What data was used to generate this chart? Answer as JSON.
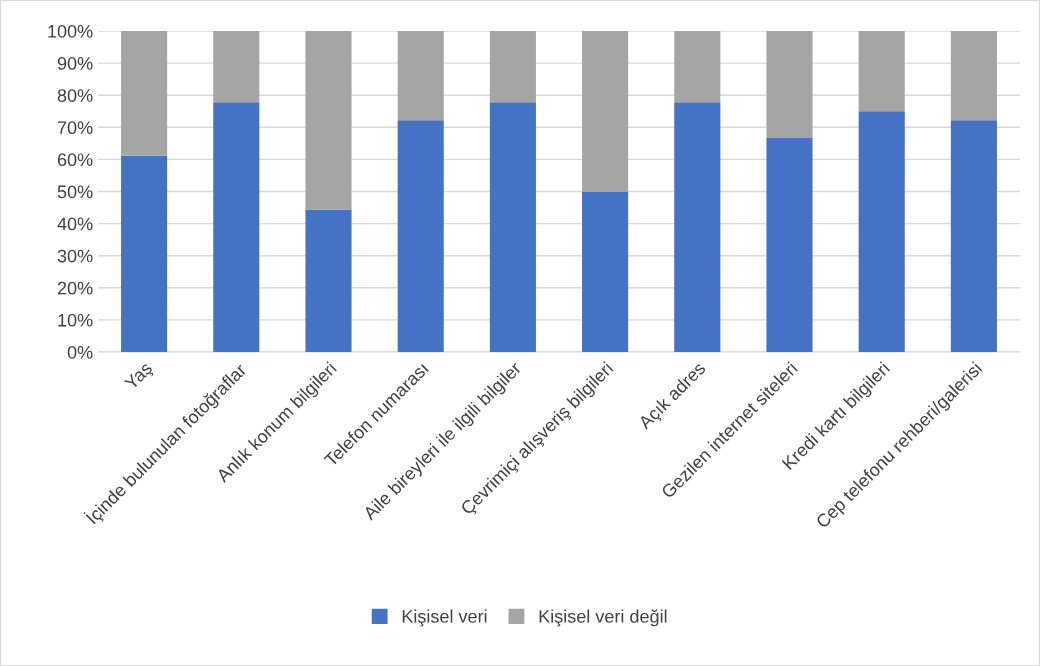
{
  "chart_data": {
    "type": "bar",
    "stacked": true,
    "categories": [
      "Yaş",
      "İçinde bulunulan fotoğraflar",
      "Anlık konum bilgileri",
      "Telefon numarası",
      "Aile bireyleri ile ilgili bilgiler",
      "Çevrimiçi alışveriş bilgileri",
      "Açık adres",
      "Gezilen internet siteleri",
      "Kredi kartı bilgileri",
      "Cep telefonu rehberi/galerisi"
    ],
    "series": [
      {
        "name": "Kişisel veri",
        "color": "#4472c4",
        "values": [
          61.1,
          77.8,
          44.4,
          72.2,
          77.8,
          50,
          77.8,
          66.7,
          75,
          72.2
        ]
      },
      {
        "name": "Kişisel veri değil",
        "color": "#a5a5a5",
        "values": [
          38.9,
          22.2,
          55.6,
          27.8,
          22.2,
          50,
          22.2,
          33.3,
          25,
          27.8
        ]
      }
    ],
    "ylim": [
      0,
      100
    ],
    "yticks": [
      {
        "value": 0,
        "label": "0%"
      },
      {
        "value": 10,
        "label": "10%"
      },
      {
        "value": 20,
        "label": "20%"
      },
      {
        "value": 30,
        "label": "30%"
      },
      {
        "value": 40,
        "label": "40%"
      },
      {
        "value": 50,
        "label": "50%"
      },
      {
        "value": 60,
        "label": "60%"
      },
      {
        "value": 70,
        "label": "70%"
      },
      {
        "value": 80,
        "label": "80%"
      },
      {
        "value": 90,
        "label": "90%"
      },
      {
        "value": 100,
        "label": "100%"
      }
    ],
    "grid": "y",
    "legend": "bottom"
  }
}
